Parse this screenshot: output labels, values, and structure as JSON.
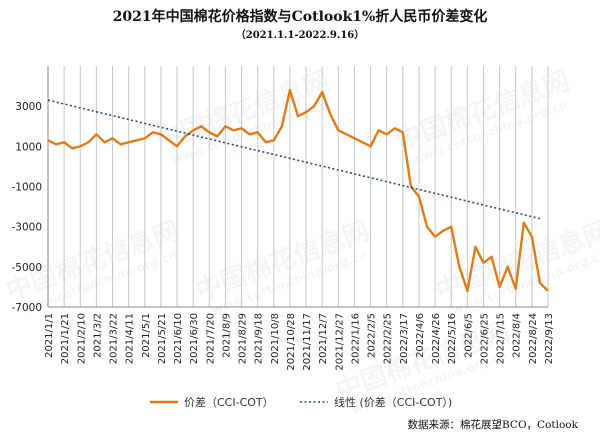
{
  "chart_data": {
    "type": "line",
    "title": "2021年中国棉花价格指数与Cotlook1%折人民币价差变化",
    "subtitle": "（2021.1.1-2022.9.16）",
    "source": "数据来源：棉花展望BCO，Cotlook",
    "ylim": [
      -7000,
      5000
    ],
    "yticks": [
      3000,
      1000,
      -1000,
      -3000,
      -5000,
      -7000
    ],
    "grid": "vertical",
    "legend_position": "bottom",
    "xtick_labels": [
      "2021/1/1",
      "2021/1/21",
      "2021/2/10",
      "2021/3/2",
      "2021/3/22",
      "2021/4/11",
      "2021/5/1",
      "2021/5/21",
      "2021/6/10",
      "2021/6/30",
      "2021/7/20",
      "2021/8/9",
      "2021/8/29",
      "2021/9/18",
      "2021/10/8",
      "2021/10/28",
      "2021/11/17",
      "2021/12/7",
      "2021/12/27",
      "2022/1/16",
      "2022/2/5",
      "2022/2/25",
      "2022/3/17",
      "2022/4/6",
      "2022/4/26",
      "2022/5/16",
      "2022/6/5",
      "2022/6/25",
      "2022/7/15",
      "2022/8/4",
      "2022/8/24",
      "2022/9/13"
    ],
    "series": [
      {
        "name": "价差（CCI-COT）",
        "color": "#E07B1A",
        "style": "solid",
        "x": [
          "2021/1/1",
          "2021/1/11",
          "2021/1/21",
          "2021/1/31",
          "2021/2/10",
          "2021/2/20",
          "2021/3/2",
          "2021/3/12",
          "2021/3/22",
          "2021/4/1",
          "2021/4/11",
          "2021/4/21",
          "2021/5/1",
          "2021/5/11",
          "2021/5/21",
          "2021/5/31",
          "2021/6/10",
          "2021/6/20",
          "2021/6/30",
          "2021/7/10",
          "2021/7/20",
          "2021/7/30",
          "2021/8/9",
          "2021/8/19",
          "2021/8/29",
          "2021/9/8",
          "2021/9/18",
          "2021/9/28",
          "2021/10/8",
          "2021/10/18",
          "2021/10/28",
          "2021/11/7",
          "2021/11/17",
          "2021/11/27",
          "2021/12/7",
          "2021/12/17",
          "2021/12/27",
          "2022/1/6",
          "2022/1/16",
          "2022/1/26",
          "2022/2/5",
          "2022/2/15",
          "2022/2/25",
          "2022/3/7",
          "2022/3/17",
          "2022/3/27",
          "2022/4/6",
          "2022/4/16",
          "2022/4/26",
          "2022/5/6",
          "2022/5/16",
          "2022/5/26",
          "2022/6/5",
          "2022/6/15",
          "2022/6/25",
          "2022/7/5",
          "2022/7/15",
          "2022/7/25",
          "2022/8/4",
          "2022/8/14",
          "2022/8/24",
          "2022/9/3",
          "2022/9/13"
        ],
        "values": [
          1300,
          1100,
          1200,
          900,
          1000,
          1200,
          1600,
          1200,
          1400,
          1100,
          1200,
          1300,
          1400,
          1700,
          1600,
          1300,
          1000,
          1500,
          1800,
          2000,
          1700,
          1500,
          2000,
          1800,
          1900,
          1600,
          1700,
          1200,
          1300,
          2000,
          3800,
          2500,
          2700,
          3000,
          3700,
          2600,
          1800,
          1600,
          1400,
          1200,
          1000,
          1800,
          1600,
          1900,
          1700,
          -1000,
          -1500,
          -3000,
          -3500,
          -3200,
          -3000,
          -5000,
          -6200,
          -4000,
          -4800,
          -4500,
          -6000,
          -5000,
          -6100,
          -2800,
          -3500,
          -5800,
          -6200
        ]
      },
      {
        "name": "线性 (价差（CCI-COT）)",
        "color": "#2E4A7D",
        "style": "dotted",
        "x": [
          "2021/1/1",
          "2022/9/3"
        ],
        "values": [
          3300,
          -2600
        ]
      }
    ]
  },
  "watermark": {
    "brand": "中国棉花信息网",
    "url": "www.cottonchina.org.cn"
  }
}
